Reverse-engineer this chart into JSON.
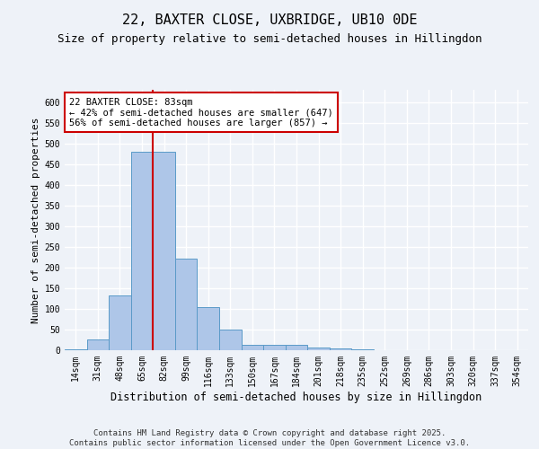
{
  "title": "22, BAXTER CLOSE, UXBRIDGE, UB10 0DE",
  "subtitle": "Size of property relative to semi-detached houses in Hillingdon",
  "xlabel": "Distribution of semi-detached houses by size in Hillingdon",
  "ylabel": "Number of semi-detached properties",
  "categories": [
    "14sqm",
    "31sqm",
    "48sqm",
    "65sqm",
    "82sqm",
    "99sqm",
    "116sqm",
    "133sqm",
    "150sqm",
    "167sqm",
    "184sqm",
    "201sqm",
    "218sqm",
    "235sqm",
    "252sqm",
    "269sqm",
    "286sqm",
    "303sqm",
    "320sqm",
    "337sqm",
    "354sqm"
  ],
  "values": [
    2,
    27,
    133,
    480,
    480,
    222,
    105,
    50,
    14,
    12,
    12,
    7,
    5,
    2,
    0,
    1,
    0,
    0,
    0,
    0,
    0
  ],
  "bar_color": "#aec6e8",
  "bar_edge_color": "#5a9ac8",
  "vline_x_index": 4,
  "annotation_text": "22 BAXTER CLOSE: 83sqm\n← 42% of semi-detached houses are smaller (647)\n56% of semi-detached houses are larger (857) →",
  "annotation_box_facecolor": "#ffffff",
  "annotation_box_edgecolor": "#cc0000",
  "vline_color": "#cc0000",
  "ylim": [
    0,
    630
  ],
  "yticks": [
    0,
    50,
    100,
    150,
    200,
    250,
    300,
    350,
    400,
    450,
    500,
    550,
    600
  ],
  "background_color": "#eef2f8",
  "grid_color": "#ffffff",
  "footer_text": "Contains HM Land Registry data © Crown copyright and database right 2025.\nContains public sector information licensed under the Open Government Licence v3.0.",
  "title_fontsize": 11,
  "subtitle_fontsize": 9,
  "xlabel_fontsize": 8.5,
  "ylabel_fontsize": 8,
  "tick_fontsize": 7,
  "annotation_fontsize": 7.5,
  "footer_fontsize": 6.5
}
